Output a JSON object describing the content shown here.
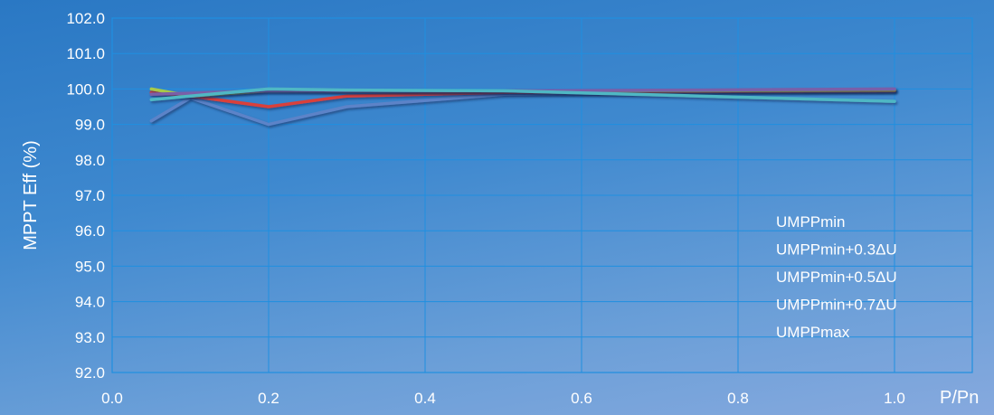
{
  "chart_data": {
    "type": "line",
    "title": "",
    "xlabel": "P/Pn",
    "ylabel": "MPPT Eff (%)",
    "xlim": [
      0.0,
      1.0
    ],
    "ylim": [
      92.0,
      102.0
    ],
    "x_ticks": [
      "0.0",
      "0.2",
      "0.4",
      "0.6",
      "0.8",
      "1.0"
    ],
    "y_ticks": [
      "92.0",
      "93.0",
      "94.0",
      "95.0",
      "96.0",
      "97.0",
      "98.0",
      "99.0",
      "100.0",
      "101.0",
      "102.0"
    ],
    "grid": true,
    "legend_position": "bottom-right",
    "series": [
      {
        "name": "UMPPmin",
        "color": "#5b83c8",
        "points": [
          [
            0.05,
            99.1
          ],
          [
            0.1,
            99.75
          ],
          [
            0.2,
            99.0
          ],
          [
            0.3,
            99.5
          ],
          [
            0.5,
            99.85
          ],
          [
            0.75,
            99.92
          ],
          [
            1.0,
            99.95
          ]
        ]
      },
      {
        "name": "UMPPmin+0.3ΔU",
        "color": "#d9413b",
        "points": [
          [
            0.05,
            99.9
          ],
          [
            0.1,
            99.8
          ],
          [
            0.2,
            99.5
          ],
          [
            0.3,
            99.8
          ],
          [
            0.5,
            99.9
          ],
          [
            0.75,
            99.93
          ],
          [
            1.0,
            99.95
          ]
        ]
      },
      {
        "name": "UMPPmin+0.5ΔU",
        "color": "#a8c94a",
        "points": [
          [
            0.05,
            100.0
          ],
          [
            0.1,
            99.8
          ],
          [
            0.2,
            99.95
          ],
          [
            0.3,
            99.95
          ],
          [
            0.5,
            99.95
          ],
          [
            0.75,
            99.95
          ],
          [
            1.0,
            99.97
          ]
        ]
      },
      {
        "name": "UMPPmin+0.7ΔU",
        "color": "#7a5fa8",
        "points": [
          [
            0.05,
            99.85
          ],
          [
            0.1,
            99.88
          ],
          [
            0.2,
            99.95
          ],
          [
            0.3,
            99.95
          ],
          [
            0.5,
            99.95
          ],
          [
            0.75,
            99.97
          ],
          [
            1.0,
            100.0
          ]
        ]
      },
      {
        "name": "UMPPmax",
        "color": "#4fb7c4",
        "points": [
          [
            0.05,
            99.7
          ],
          [
            0.1,
            99.8
          ],
          [
            0.2,
            100.0
          ],
          [
            0.3,
            99.97
          ],
          [
            0.5,
            99.95
          ],
          [
            0.75,
            99.8
          ],
          [
            1.0,
            99.65
          ]
        ]
      }
    ]
  }
}
